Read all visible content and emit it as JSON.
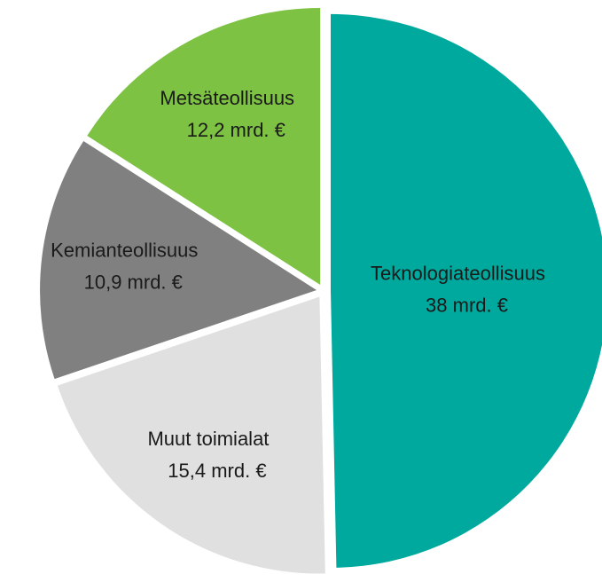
{
  "chart_data": {
    "type": "pie",
    "categories": [
      "Teknologiateollisuus",
      "Muut toimialat",
      "Kemianteollisuus",
      "Metsäteollisuus"
    ],
    "values": [
      38,
      15.4,
      10.9,
      12.2
    ],
    "value_labels": [
      "38 mrd. €",
      "15,4 mrd. €",
      "10,9 mrd. €",
      "12,2 mrd. €"
    ],
    "colors": [
      "#00a99d",
      "#e0e0e0",
      "#808080",
      "#7dc243"
    ]
  }
}
